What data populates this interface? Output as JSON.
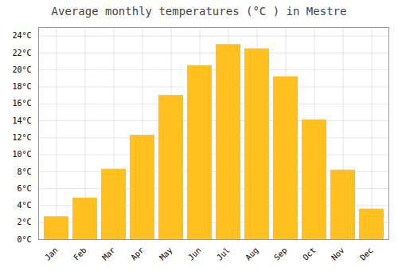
{
  "chart_data": {
    "type": "bar",
    "title": "Average monthly temperatures (°C ) in Mestre",
    "categories": [
      "Jan",
      "Feb",
      "Mar",
      "Apr",
      "May",
      "Jun",
      "Jul",
      "Aug",
      "Sep",
      "Oct",
      "Nov",
      "Dec"
    ],
    "values": [
      2.7,
      4.9,
      8.3,
      12.3,
      17.0,
      20.5,
      23.0,
      22.5,
      19.2,
      14.1,
      8.2,
      3.6
    ],
    "color": "#FFC020",
    "ylim": [
      0,
      25
    ],
    "yticks": [
      {
        "value": 0,
        "label": "0°C"
      },
      {
        "value": 2,
        "label": "2°C"
      },
      {
        "value": 4,
        "label": "4°C"
      },
      {
        "value": 6,
        "label": "6°C"
      },
      {
        "value": 8,
        "label": "8°C"
      },
      {
        "value": 10,
        "label": "10°C"
      },
      {
        "value": 12,
        "label": "12°C"
      },
      {
        "value": 14,
        "label": "14°C"
      },
      {
        "value": 16,
        "label": "16°C"
      },
      {
        "value": 18,
        "label": "18°C"
      },
      {
        "value": 20,
        "label": "20°C"
      },
      {
        "value": 22,
        "label": "22°C"
      },
      {
        "value": 24,
        "label": "24°C"
      }
    ],
    "grid": true
  }
}
